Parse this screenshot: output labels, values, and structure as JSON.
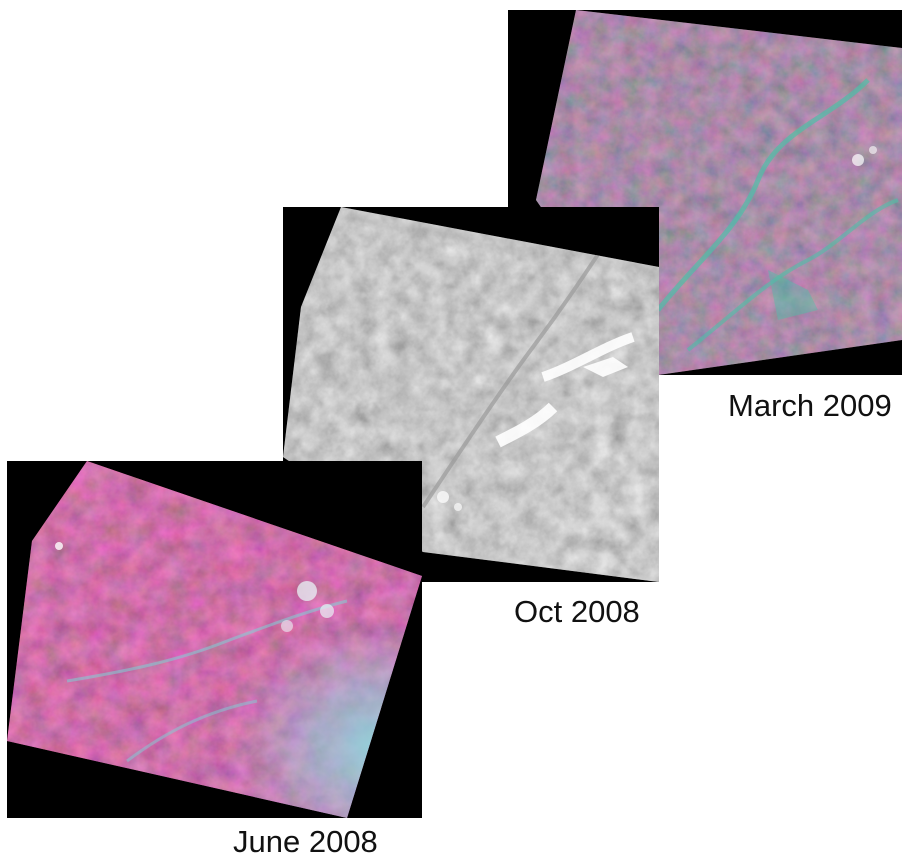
{
  "scenes": [
    {
      "id": "march",
      "label": "March 2009",
      "band_style": "false-color-green",
      "palette": {
        "base": "#5e5a63",
        "land": "#8a3e5a",
        "water": "#4fbfa8"
      }
    },
    {
      "id": "oct",
      "label": "Oct 2008",
      "band_style": "grayscale",
      "palette": {
        "base": "#5d5d5d",
        "land": "#777777",
        "cloud": "#ffffff"
      }
    },
    {
      "id": "june",
      "label": "June 2008",
      "band_style": "false-color-red",
      "palette": {
        "base": "#a8305e",
        "land": "#7d1f47",
        "water": "#7fd0d6",
        "cloud": "#e8f4f7"
      }
    }
  ]
}
